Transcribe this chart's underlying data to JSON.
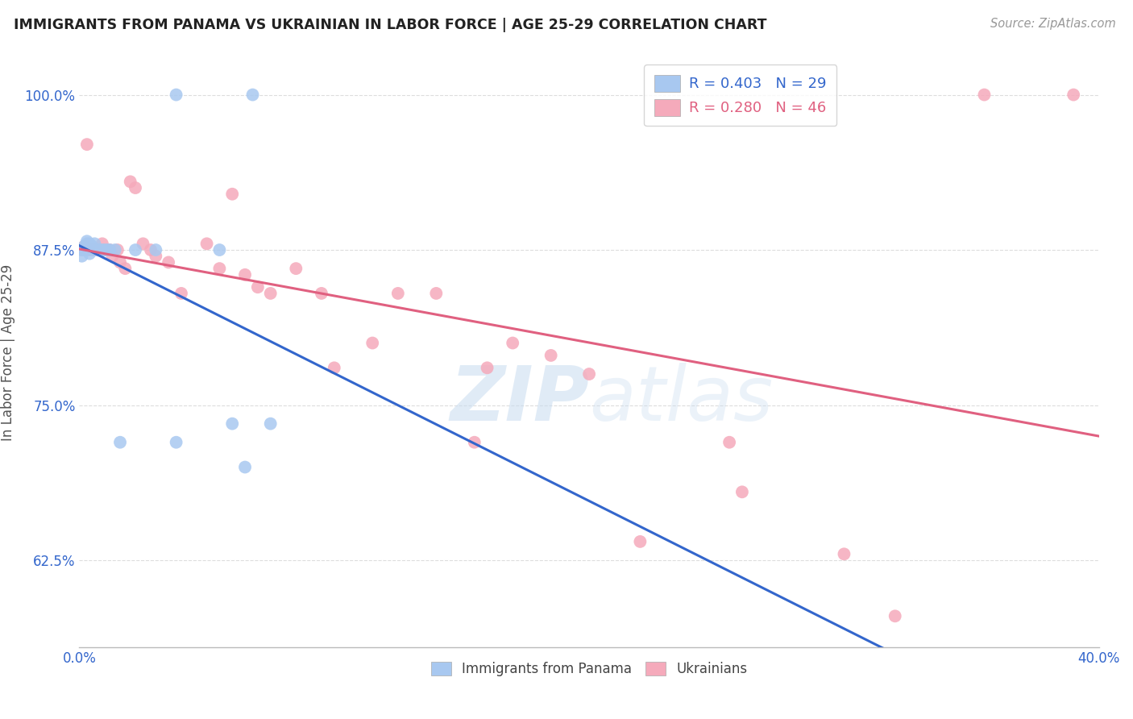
{
  "title": "IMMIGRANTS FROM PANAMA VS UKRAINIAN IN LABOR FORCE | AGE 25-29 CORRELATION CHART",
  "source_text": "Source: ZipAtlas.com",
  "ylabel": "In Labor Force | Age 25-29",
  "xlim": [
    0.0,
    0.4
  ],
  "ylim": [
    0.555,
    1.03
  ],
  "xticks": [
    0.0,
    0.05,
    0.1,
    0.15,
    0.2,
    0.25,
    0.3,
    0.35,
    0.4
  ],
  "xticklabels": [
    "0.0%",
    "",
    "",
    "",
    "",
    "",
    "",
    "",
    "40.0%"
  ],
  "yticks": [
    0.625,
    0.75,
    0.875,
    1.0
  ],
  "yticklabels": [
    "62.5%",
    "75.0%",
    "87.5%",
    "100.0%"
  ],
  "watermark": "ZIPatlas",
  "panama_R": 0.403,
  "panama_N": 29,
  "ukraine_R": 0.28,
  "ukraine_N": 46,
  "panama_color": "#A8C8F0",
  "ukraine_color": "#F5AABB",
  "panama_line_color": "#3366CC",
  "ukraine_line_color": "#E06080",
  "background_color": "#ffffff",
  "panama_x": [
    0.001,
    0.001,
    0.002,
    0.002,
    0.003,
    0.003,
    0.004,
    0.004,
    0.004,
    0.005,
    0.005,
    0.006,
    0.007,
    0.008,
    0.009,
    0.01,
    0.011,
    0.012,
    0.014,
    0.016,
    0.022,
    0.03,
    0.038,
    0.038,
    0.055,
    0.06,
    0.065,
    0.068,
    0.075
  ],
  "panama_y": [
    0.875,
    0.87,
    0.878,
    0.875,
    0.882,
    0.88,
    0.88,
    0.876,
    0.872,
    0.878,
    0.875,
    0.88,
    0.875,
    0.875,
    0.875,
    0.875,
    0.875,
    0.875,
    0.875,
    0.72,
    0.875,
    0.875,
    1.0,
    0.72,
    0.875,
    0.735,
    0.7,
    1.0,
    0.735
  ],
  "ukraine_x": [
    0.001,
    0.002,
    0.003,
    0.004,
    0.005,
    0.006,
    0.008,
    0.009,
    0.01,
    0.011,
    0.012,
    0.013,
    0.015,
    0.016,
    0.018,
    0.02,
    0.022,
    0.025,
    0.028,
    0.03,
    0.035,
    0.04,
    0.05,
    0.055,
    0.06,
    0.065,
    0.07,
    0.075,
    0.085,
    0.095,
    0.1,
    0.115,
    0.125,
    0.14,
    0.155,
    0.16,
    0.17,
    0.185,
    0.2,
    0.22,
    0.255,
    0.26,
    0.3,
    0.32,
    0.355,
    0.39
  ],
  "ukraine_y": [
    0.875,
    0.878,
    0.96,
    0.875,
    0.875,
    0.875,
    0.875,
    0.88,
    0.875,
    0.875,
    0.875,
    0.87,
    0.875,
    0.865,
    0.86,
    0.93,
    0.925,
    0.88,
    0.875,
    0.87,
    0.865,
    0.84,
    0.88,
    0.86,
    0.92,
    0.855,
    0.845,
    0.84,
    0.86,
    0.84,
    0.78,
    0.8,
    0.84,
    0.84,
    0.72,
    0.78,
    0.8,
    0.79,
    0.775,
    0.64,
    0.72,
    0.68,
    0.63,
    0.58,
    1.0,
    1.0
  ]
}
